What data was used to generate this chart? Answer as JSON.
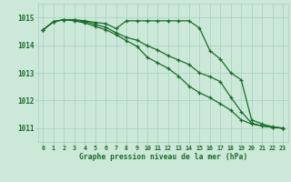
{
  "background_color": "#cce8d8",
  "grid_color": "#a8cfc0",
  "line_color": "#1a6b2a",
  "title": "Graphe pression niveau de la mer (hPa)",
  "hours": [
    0,
    1,
    2,
    3,
    4,
    5,
    6,
    7,
    8,
    9,
    10,
    11,
    12,
    13,
    14,
    15,
    16,
    17,
    18,
    19,
    20,
    21,
    22,
    23
  ],
  "ylim": [
    1010.5,
    1015.5
  ],
  "yticks": [
    1011,
    1012,
    1013,
    1014,
    1015
  ],
  "line1": [
    1014.55,
    1014.85,
    1014.92,
    1014.92,
    1014.88,
    1014.82,
    1014.78,
    1014.6,
    1014.88,
    1014.88,
    1014.88,
    1014.88,
    1014.88,
    1014.88,
    1014.88,
    1014.62,
    1013.8,
    1013.5,
    1013.0,
    1012.75,
    1011.3,
    1011.15,
    1011.05,
    1011.0
  ],
  "line2": [
    1014.55,
    1014.85,
    1014.92,
    1014.9,
    1014.85,
    1014.75,
    1014.65,
    1014.45,
    1014.28,
    1014.18,
    1013.98,
    1013.82,
    1013.62,
    1013.46,
    1013.3,
    1013.0,
    1012.86,
    1012.68,
    1012.12,
    1011.6,
    1011.18,
    1011.08,
    1011.03,
    1011.0
  ],
  "line3": [
    1014.55,
    1014.85,
    1014.92,
    1014.88,
    1014.8,
    1014.68,
    1014.56,
    1014.38,
    1014.16,
    1013.96,
    1013.56,
    1013.36,
    1013.16,
    1012.88,
    1012.52,
    1012.28,
    1012.1,
    1011.88,
    1011.65,
    1011.3,
    1011.15,
    1011.08,
    1011.03,
    1011.0
  ]
}
